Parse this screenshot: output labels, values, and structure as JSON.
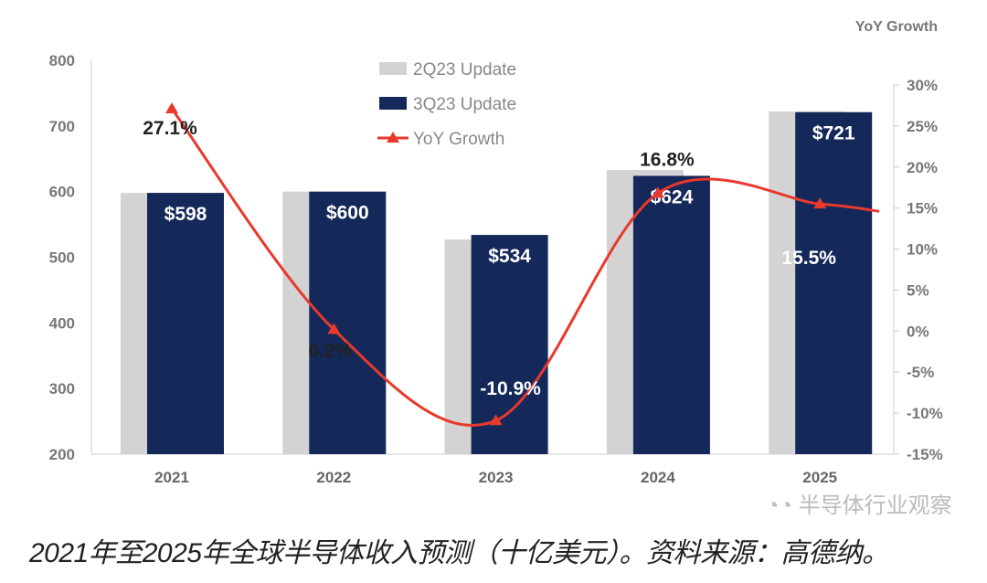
{
  "chart_data": {
    "type": "bar",
    "categories": [
      "2021",
      "2022",
      "2023",
      "2024",
      "2025"
    ],
    "series": [
      {
        "name": "2Q23 Update",
        "type": "bar",
        "color": "#d3d3d3",
        "values": [
          598,
          600,
          527,
          633,
          722
        ]
      },
      {
        "name": "3Q23 Update",
        "type": "bar",
        "color": "#14285a",
        "values": [
          598,
          600,
          534,
          624,
          721
        ],
        "labels": [
          "$598",
          "$600",
          "$534",
          "$624",
          "$721"
        ]
      },
      {
        "name": "YoY Growth",
        "type": "line",
        "axis": "right",
        "color": "#e8392d",
        "marker": "triangle",
        "values": [
          27.1,
          0.2,
          -10.9,
          16.8,
          15.5
        ],
        "labels": [
          "27.1%",
          "0.2%",
          "-10.9%",
          "16.8%",
          "15.5%"
        ]
      }
    ],
    "left_axis": {
      "ylim": [
        200,
        800
      ],
      "ticks": [
        "200",
        "300",
        "400",
        "500",
        "600",
        "700",
        "800"
      ]
    },
    "right_axis": {
      "title": "YoY Growth",
      "ylim": [
        -15,
        30
      ],
      "ticks": [
        "-15%",
        "-10%",
        "-5%",
        "0%",
        "5%",
        "10%",
        "15%",
        "20%",
        "25%",
        "30%"
      ]
    },
    "legend_placement": "top-center",
    "grid": false
  },
  "caption": "2021年至2025年全球半导体收入预测（十亿美元）。资料来源：高德纳。",
  "watermark": "半导体行业观察"
}
